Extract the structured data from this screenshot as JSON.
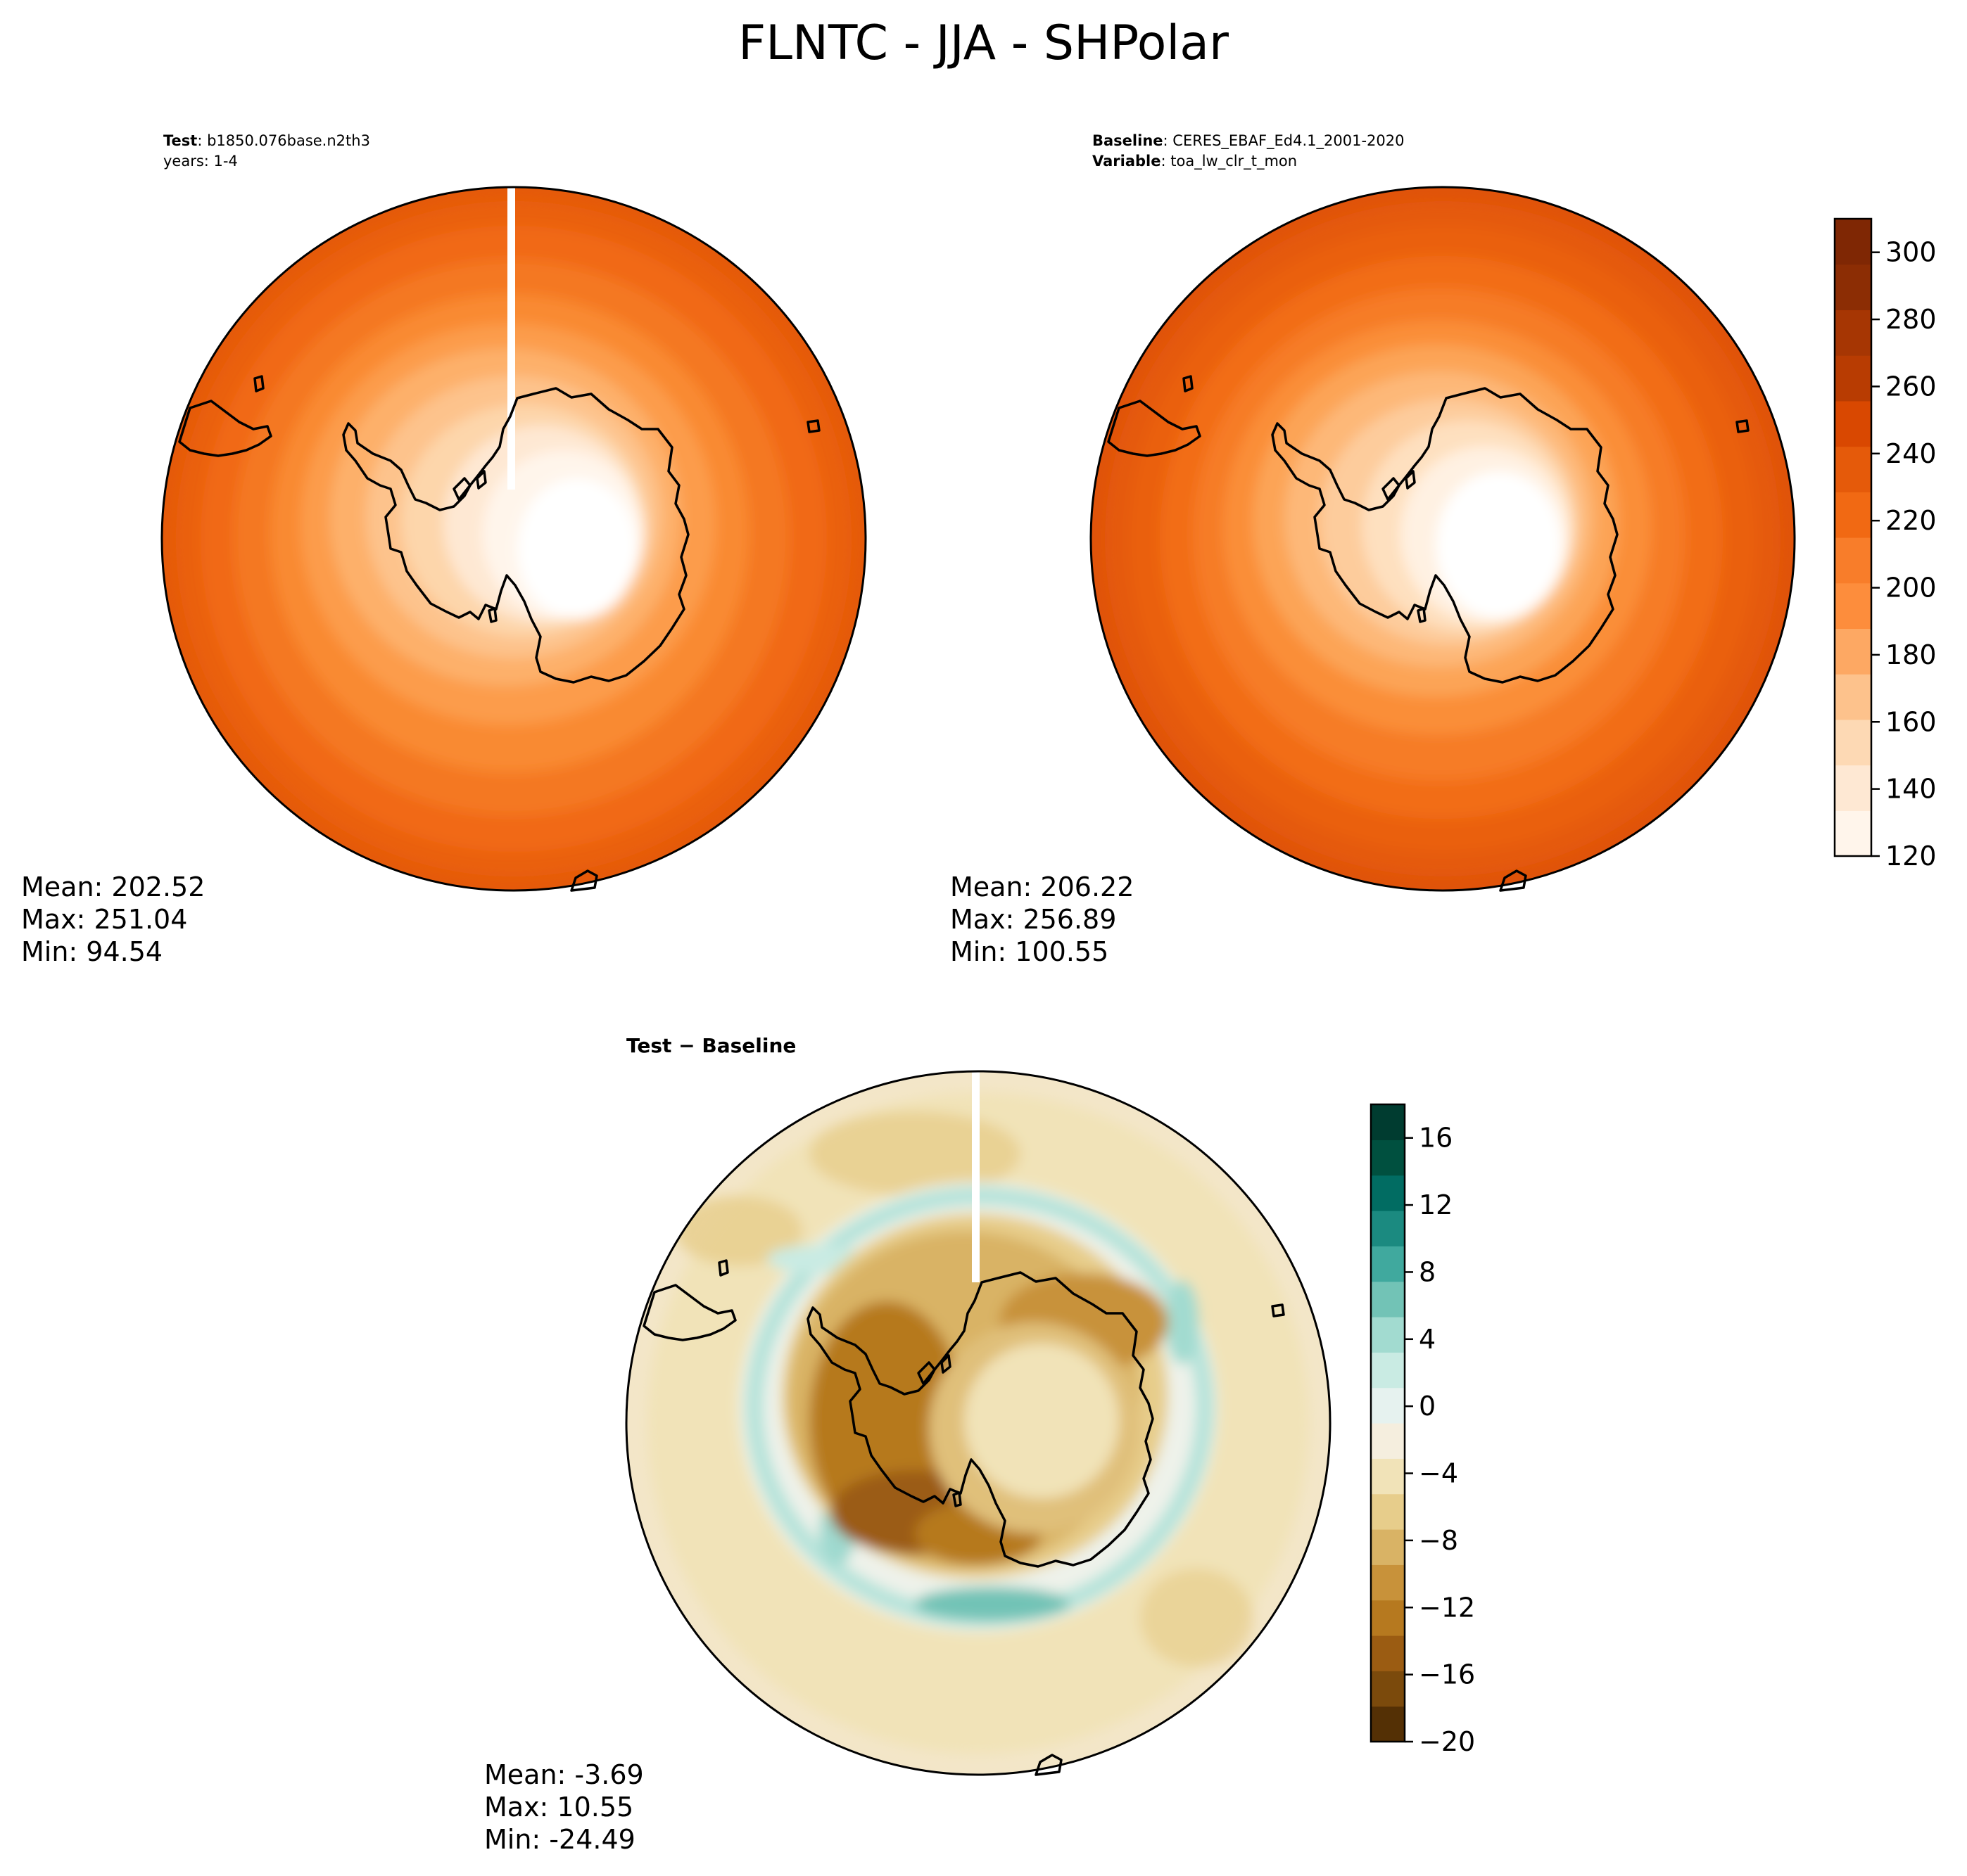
{
  "figure": {
    "title": "FLNTC - JJA - SHPolar"
  },
  "panels": {
    "test": {
      "meta_key": "Test",
      "meta_value": "b1850.076base.n2th3",
      "meta_line2": "years: 1-4",
      "mean": "Mean: 202.52",
      "max": "Max: 251.04",
      "min": "Min: 94.54"
    },
    "baseline": {
      "meta_key": "Baseline",
      "meta_value": "CERES_EBAF_Ed4.1_2001-2020",
      "meta_key2": "Variable",
      "meta_value2": "toa_lw_clr_t_mon",
      "mean": "Mean: 206.22",
      "max": "Max: 256.89",
      "min": "Min: 100.55"
    },
    "diff": {
      "title_left": "Test",
      "title_sep": " − ",
      "title_right": "Baseline",
      "mean": "Mean: -3.69",
      "max": "Max: 10.55",
      "min": "Min: -24.49"
    }
  },
  "chart_data": [
    {
      "type": "heatmap",
      "name": "Test",
      "projection": "south-polar-stereographic",
      "stats": {
        "mean": 202.52,
        "max": 251.04,
        "min": 94.54
      },
      "colormap": "Oranges",
      "clim": [
        120,
        310
      ]
    },
    {
      "type": "heatmap",
      "name": "Baseline",
      "projection": "south-polar-stereographic",
      "stats": {
        "mean": 206.22,
        "max": 256.89,
        "min": 100.55
      },
      "colormap": "Oranges",
      "clim": [
        120,
        310
      ],
      "colorbar_ticks": [
        "120",
        "140",
        "160",
        "180",
        "200",
        "220",
        "240",
        "260",
        "280",
        "300"
      ]
    },
    {
      "type": "heatmap",
      "name": "Test − Baseline",
      "projection": "south-polar-stereographic",
      "stats": {
        "mean": -3.69,
        "max": 10.55,
        "min": -24.49
      },
      "colormap": "BrBG",
      "clim": [
        -20,
        18
      ],
      "colorbar_ticks": [
        "−20",
        "−16",
        "−12",
        "−8",
        "−4",
        "0",
        "4",
        "8",
        "12",
        "16"
      ]
    }
  ],
  "colors": {
    "oranges": [
      "#fff5eb",
      "#fee8d3",
      "#fdd9b4",
      "#fdc28c",
      "#fda863",
      "#fd8d3c",
      "#f87d2a",
      "#f16913",
      "#e55a0a",
      "#d94801",
      "#b83c02",
      "#a63603",
      "#8c2d04",
      "#7f2704"
    ],
    "brbg": [
      "#543005",
      "#7b4a0c",
      "#9b5c12",
      "#b6791f",
      "#c8923a",
      "#d9b365",
      "#e7cd8b",
      "#f1e3b8",
      "#f5eede",
      "#e6f2ef",
      "#c9ebe3",
      "#a2dbd0",
      "#72c3b6",
      "#40a99e",
      "#1b8a80",
      "#016c62",
      "#00503f",
      "#003c30"
    ]
  }
}
